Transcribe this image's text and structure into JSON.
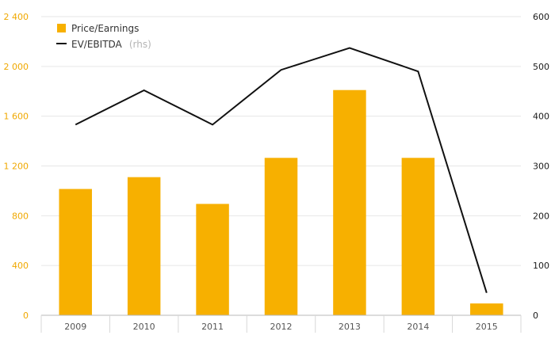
{
  "chart_data": {
    "type": "bar",
    "categories": [
      "2009",
      "2010",
      "2011",
      "2012",
      "2013",
      "2014",
      "2015"
    ],
    "series": [
      {
        "name": "Price/Earnings",
        "type": "bar",
        "axis": "left",
        "color": "#f7b000",
        "values": [
          1015,
          1110,
          895,
          1265,
          1810,
          1265,
          95
        ]
      },
      {
        "name": "EV/EBITDA",
        "name_suffix": "(rhs)",
        "type": "line",
        "axis": "right",
        "color": "#111111",
        "values": [
          383,
          452,
          383,
          493,
          537,
          490,
          45
        ]
      }
    ],
    "y_left": {
      "ylim": [
        0,
        2400
      ],
      "ticks": [
        0,
        400,
        800,
        1200,
        1600,
        2000,
        2400
      ],
      "tick_labels": [
        "0",
        "400",
        "800",
        "1 200",
        "1 600",
        "2 000",
        "2 400"
      ],
      "color": "#f0a800"
    },
    "y_right": {
      "ylim": [
        0,
        600
      ],
      "ticks": [
        0,
        100,
        200,
        300,
        400,
        500,
        600
      ],
      "tick_labels": [
        "0",
        "100",
        "200",
        "300",
        "400",
        "500",
        "600"
      ]
    },
    "grid": true,
    "legend_position": "top-left"
  }
}
